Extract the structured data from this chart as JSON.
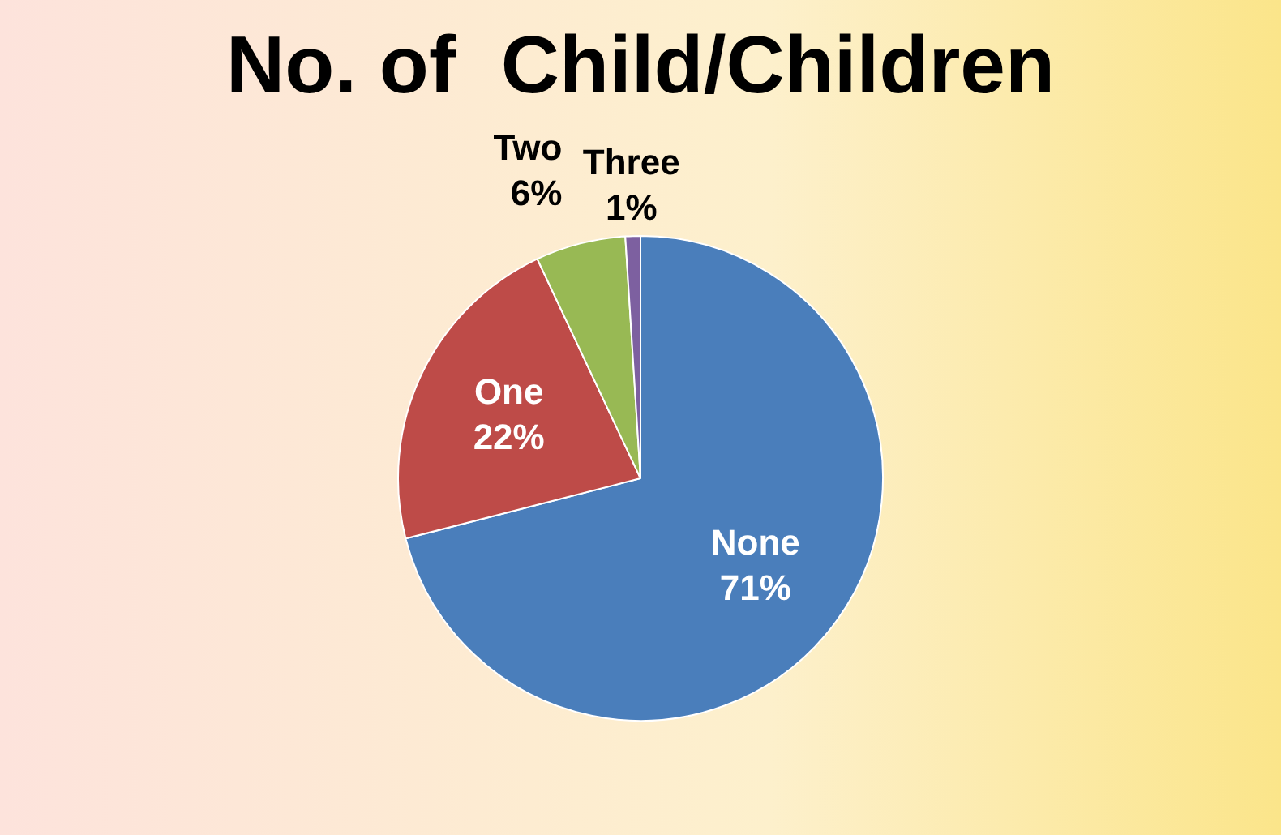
{
  "chart_data": {
    "type": "pie",
    "title": "No. of  Child/Children",
    "categories": [
      "None",
      "One",
      "Two",
      "Three"
    ],
    "values": [
      71,
      22,
      6,
      1
    ],
    "colors": [
      "#4a7ebb",
      "#be4b48",
      "#98b954",
      "#7d60a0"
    ],
    "value_labels": [
      "71%",
      "22%",
      "6%",
      "1%"
    ],
    "legend": false
  }
}
